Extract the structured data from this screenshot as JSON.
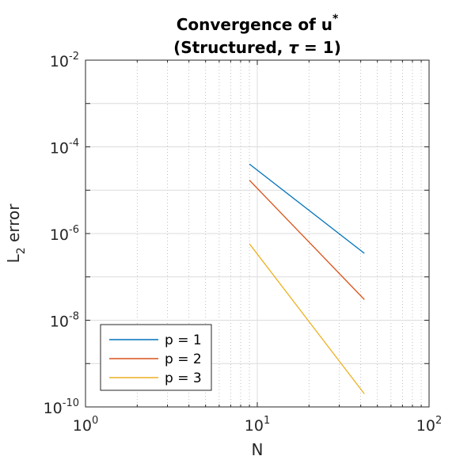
{
  "chart_data": {
    "type": "line",
    "title_line1": "Convergence of u",
    "title_sup": "*",
    "title_line2_pre": "(Structured, ",
    "title_line2_sym": "τ",
    "title_line2_post": " = 1)",
    "xlabel": "N",
    "ylabel_main": "L",
    "ylabel_sub": "2",
    "ylabel_rest": " error",
    "xscale": "log",
    "yscale": "log",
    "xlim": [
      1,
      100
    ],
    "ylim": [
      1e-10,
      0.01
    ],
    "grid": true,
    "minor_grid": true,
    "legend_position": "bottom-left",
    "x_ticks": [
      {
        "base": "10",
        "exp": "0"
      },
      {
        "base": "10",
        "exp": "1"
      },
      {
        "base": "10",
        "exp": "2"
      }
    ],
    "y_ticks": [
      {
        "base": "10",
        "exp": "-2"
      },
      {
        "base": "10",
        "exp": "-4"
      },
      {
        "base": "10",
        "exp": "-6"
      },
      {
        "base": "10",
        "exp": "-8"
      },
      {
        "base": "10",
        "exp": "-10"
      }
    ],
    "series": [
      {
        "name": "p = 1",
        "color": "#0072BD",
        "x": [
          9,
          42
        ],
        "y": [
          4e-05,
          3.5e-07
        ]
      },
      {
        "name": "p = 2",
        "color": "#D95319",
        "x": [
          9,
          42
        ],
        "y": [
          1.7e-05,
          3e-08
        ]
      },
      {
        "name": "p = 3",
        "color": "#EDB120",
        "x": [
          9,
          42
        ],
        "y": [
          5.8e-07,
          2e-10
        ]
      }
    ]
  }
}
